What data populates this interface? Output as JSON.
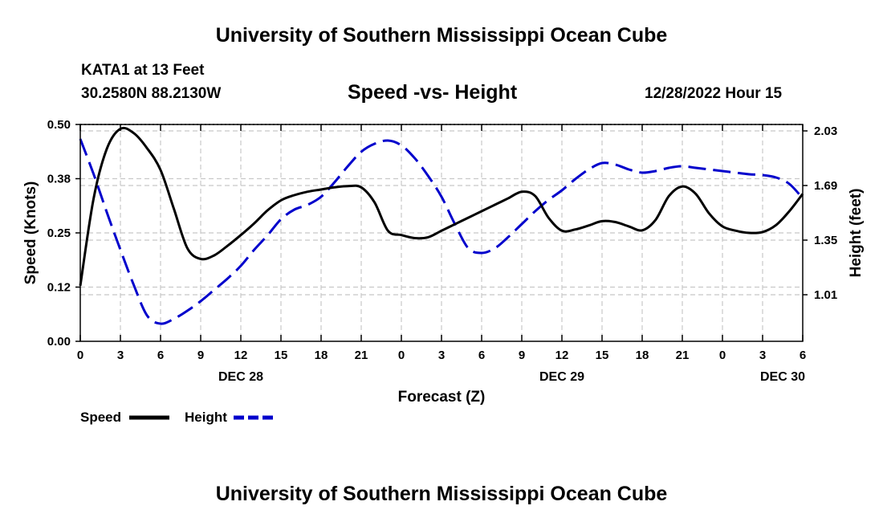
{
  "header": {
    "title": "University of Southern Mississippi Ocean Cube",
    "station": "KATA1 at 13 Feet",
    "coords": "30.2580N  88.2130W",
    "datetime": "12/28/2022 Hour 15"
  },
  "footer": {
    "title": "University of Southern Mississippi Ocean Cube"
  },
  "chart_data": {
    "type": "line",
    "title": "Speed -vs- Height",
    "xlabel": "Forecast (Z)",
    "ylabel_left": "Speed (Knots)",
    "ylabel_right": "Height (feet)",
    "xlim": [
      0,
      54
    ],
    "ylim_left": [
      0,
      0.5
    ],
    "ylim_right": [
      0.72,
      2.07
    ],
    "x_ticks": [
      0,
      3,
      6,
      9,
      12,
      15,
      18,
      21,
      24,
      27,
      30,
      33,
      36,
      39,
      42,
      45,
      48,
      51,
      54
    ],
    "x_tick_labels": [
      "0",
      "3",
      "6",
      "9",
      "12",
      "15",
      "18",
      "21",
      "0",
      "3",
      "6",
      "9",
      "12",
      "15",
      "18",
      "21",
      "0",
      "3",
      "6"
    ],
    "date_labels": [
      {
        "x": 12,
        "text": "DEC 28"
      },
      {
        "x": 36,
        "text": "DEC 29"
      },
      {
        "x": 52.5,
        "text": "DEC 30"
      }
    ],
    "y_left_ticks": [
      0,
      0.125,
      0.25,
      0.375,
      0.5
    ],
    "y_left_tick_labels": [
      "0.00",
      "0.12",
      "0.25",
      "0.38",
      "0.50"
    ],
    "y_right_ticks": [
      1.01,
      1.35,
      1.69,
      2.03
    ],
    "y_right_tick_labels": [
      "1.01",
      "1.35",
      "1.69",
      "2.03"
    ],
    "grid": true,
    "legend_position": "bottom-left",
    "series": [
      {
        "name": "Speed",
        "axis": "left",
        "color": "#000000",
        "dash": "solid",
        "x": [
          0,
          1,
          2,
          3,
          4,
          5,
          6,
          7,
          8,
          9,
          10,
          11,
          12,
          13,
          14,
          15,
          16,
          17,
          18,
          19,
          20,
          21,
          22,
          23,
          24,
          25,
          26,
          27,
          28,
          29,
          30,
          31,
          32,
          33,
          34,
          35,
          36,
          37,
          38,
          39,
          40,
          41,
          42,
          43,
          44,
          45,
          46,
          47,
          48,
          49,
          50,
          51,
          52,
          53,
          54
        ],
        "values": [
          0.128,
          0.33,
          0.445,
          0.49,
          0.48,
          0.445,
          0.395,
          0.305,
          0.215,
          0.19,
          0.198,
          0.22,
          0.245,
          0.272,
          0.302,
          0.325,
          0.337,
          0.345,
          0.35,
          0.355,
          0.358,
          0.355,
          0.32,
          0.255,
          0.245,
          0.238,
          0.24,
          0.255,
          0.27,
          0.285,
          0.3,
          0.315,
          0.33,
          0.345,
          0.335,
          0.285,
          0.255,
          0.258,
          0.267,
          0.277,
          0.275,
          0.265,
          0.256,
          0.28,
          0.335,
          0.357,
          0.34,
          0.295,
          0.265,
          0.255,
          0.25,
          0.252,
          0.268,
          0.3,
          0.34
        ]
      },
      {
        "name": "Height",
        "axis": "right",
        "color": "#0000cc",
        "dash": "dashed",
        "x": [
          0,
          1,
          2,
          3,
          4,
          5,
          6,
          7,
          8,
          9,
          10,
          11,
          12,
          13,
          14,
          15,
          16,
          17,
          18,
          19,
          20,
          21,
          22,
          23,
          24,
          25,
          26,
          27,
          28,
          29,
          30,
          31,
          32,
          33,
          34,
          35,
          36,
          37,
          38,
          39,
          40,
          41,
          42,
          43,
          44,
          45,
          46,
          47,
          48,
          49,
          50,
          51,
          52,
          53,
          54
        ],
        "values": [
          1.98,
          1.76,
          1.52,
          1.29,
          1.07,
          0.88,
          0.83,
          0.86,
          0.91,
          0.97,
          1.04,
          1.11,
          1.19,
          1.29,
          1.38,
          1.48,
          1.54,
          1.57,
          1.62,
          1.71,
          1.81,
          1.9,
          1.95,
          1.97,
          1.94,
          1.86,
          1.75,
          1.62,
          1.45,
          1.3,
          1.27,
          1.3,
          1.37,
          1.45,
          1.53,
          1.6,
          1.66,
          1.73,
          1.79,
          1.83,
          1.82,
          1.79,
          1.77,
          1.78,
          1.8,
          1.81,
          1.8,
          1.79,
          1.78,
          1.77,
          1.76,
          1.755,
          1.74,
          1.7,
          1.61
        ]
      }
    ]
  }
}
